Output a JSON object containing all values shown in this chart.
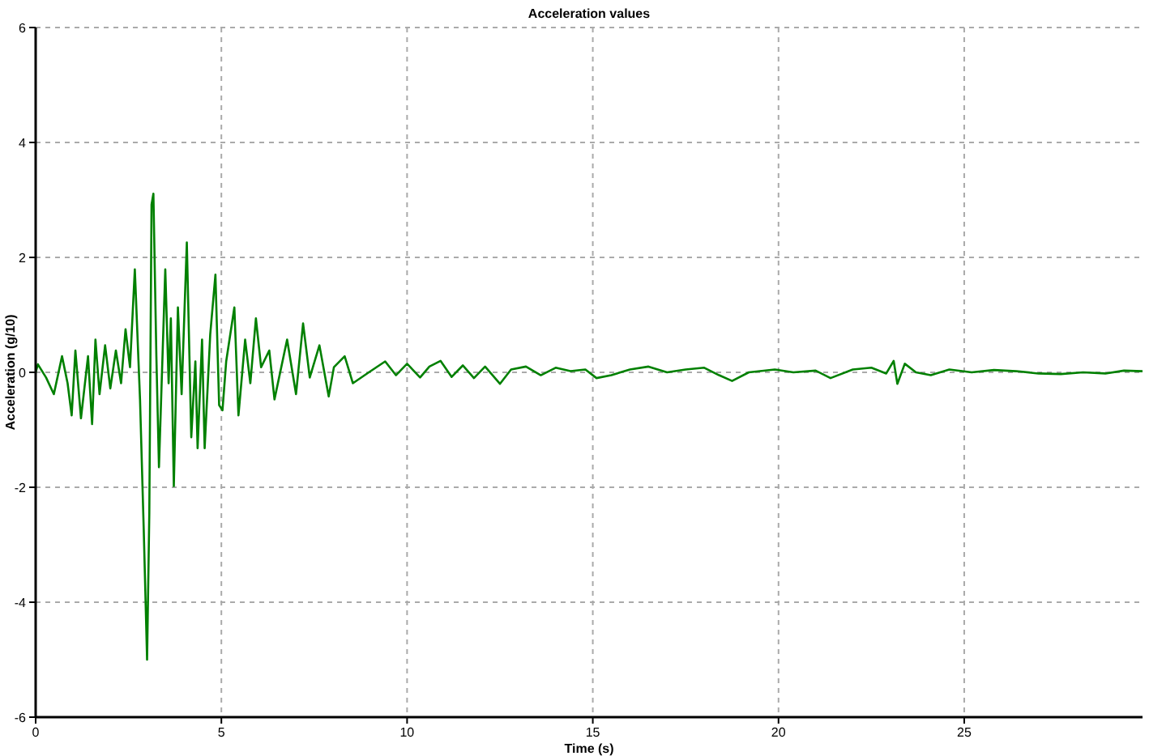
{
  "chart_data": {
    "type": "line",
    "title": "Acceleration values",
    "xlabel": "Time (s)",
    "ylabel": "Acceleration (g/10)",
    "x": [
      0,
      0.06,
      0.28,
      0.49,
      0.71,
      0.86,
      0.97,
      1.07,
      1.22,
      1.41,
      1.52,
      1.61,
      1.72,
      1.87,
      2.01,
      2.16,
      2.3,
      2.42,
      2.54,
      2.67,
      2.81,
      2.91,
      3.0,
      3.06,
      3.12,
      3.17,
      3.25,
      3.32,
      3.49,
      3.58,
      3.64,
      3.72,
      3.83,
      3.93,
      4.07,
      4.19,
      4.3,
      4.36,
      4.48,
      4.55,
      4.7,
      4.84,
      4.94,
      5.03,
      5.13,
      5.35,
      5.46,
      5.64,
      5.78,
      5.93,
      6.07,
      6.29,
      6.43,
      6.77,
      7.01,
      7.2,
      7.38,
      7.64,
      7.89,
      8.03,
      8.32,
      8.54,
      8.97,
      9.41,
      9.7,
      10.0,
      10.35,
      10.6,
      10.9,
      11.2,
      11.5,
      11.8,
      12.1,
      12.5,
      12.8,
      13.2,
      13.6,
      14.0,
      14.4,
      14.8,
      15.1,
      15.5,
      16.0,
      16.5,
      17.0,
      17.5,
      18.0,
      18.4,
      18.75,
      19.2,
      19.9,
      20.4,
      21.0,
      21.4,
      22.0,
      22.5,
      22.9,
      23.1,
      23.2,
      23.4,
      23.7,
      24.1,
      24.6,
      25.2,
      25.8,
      26.4,
      27.0,
      27.6,
      28.2,
      28.8,
      29.3,
      29.8
    ],
    "series": [
      {
        "color": "#008000",
        "values": [
          0,
          0.14,
          -0.09,
          -0.38,
          0.28,
          -0.19,
          -0.75,
          0.38,
          -0.8,
          0.28,
          -0.9,
          0.57,
          -0.38,
          0.47,
          -0.28,
          0.38,
          -0.19,
          0.75,
          0.09,
          1.79,
          -0.47,
          -2.74,
          -5.0,
          -2.45,
          2.92,
          3.11,
          0.28,
          -1.65,
          1.79,
          -0.19,
          0.94,
          -1.98,
          1.13,
          -0.38,
          2.26,
          -1.13,
          0.19,
          -1.32,
          0.57,
          -1.32,
          0.66,
          1.7,
          -0.57,
          -0.66,
          0.19,
          1.13,
          -0.75,
          0.57,
          -0.19,
          0.94,
          0.09,
          0.38,
          -0.47,
          0.57,
          -0.38,
          0.85,
          -0.09,
          0.47,
          -0.42,
          0.09,
          0.28,
          -0.19,
          0,
          0.19,
          -0.05,
          0.15,
          -0.09,
          0.1,
          0.2,
          -0.08,
          0.12,
          -0.1,
          0.1,
          -0.2,
          0.05,
          0.1,
          -0.05,
          0.08,
          0.02,
          0.05,
          -0.1,
          -0.05,
          0.05,
          0.1,
          0,
          0.05,
          0.08,
          -0.05,
          -0.15,
          0,
          0.05,
          0,
          0.03,
          -0.1,
          0.05,
          0.08,
          -0.02,
          0.2,
          -0.2,
          0.15,
          0,
          -0.05,
          0.05,
          0,
          0.04,
          0.02,
          -0.02,
          -0.03,
          0,
          -0.02,
          0.03,
          0.02
        ]
      }
    ],
    "xlim": [
      0,
      29.8
    ],
    "xticks": [
      0,
      5,
      10,
      15,
      20,
      25
    ],
    "ylim": [
      -6,
      6
    ],
    "yticks": [
      -6,
      -4,
      -2,
      0,
      2,
      4,
      6
    ],
    "grid": true,
    "line_style": "solid"
  }
}
